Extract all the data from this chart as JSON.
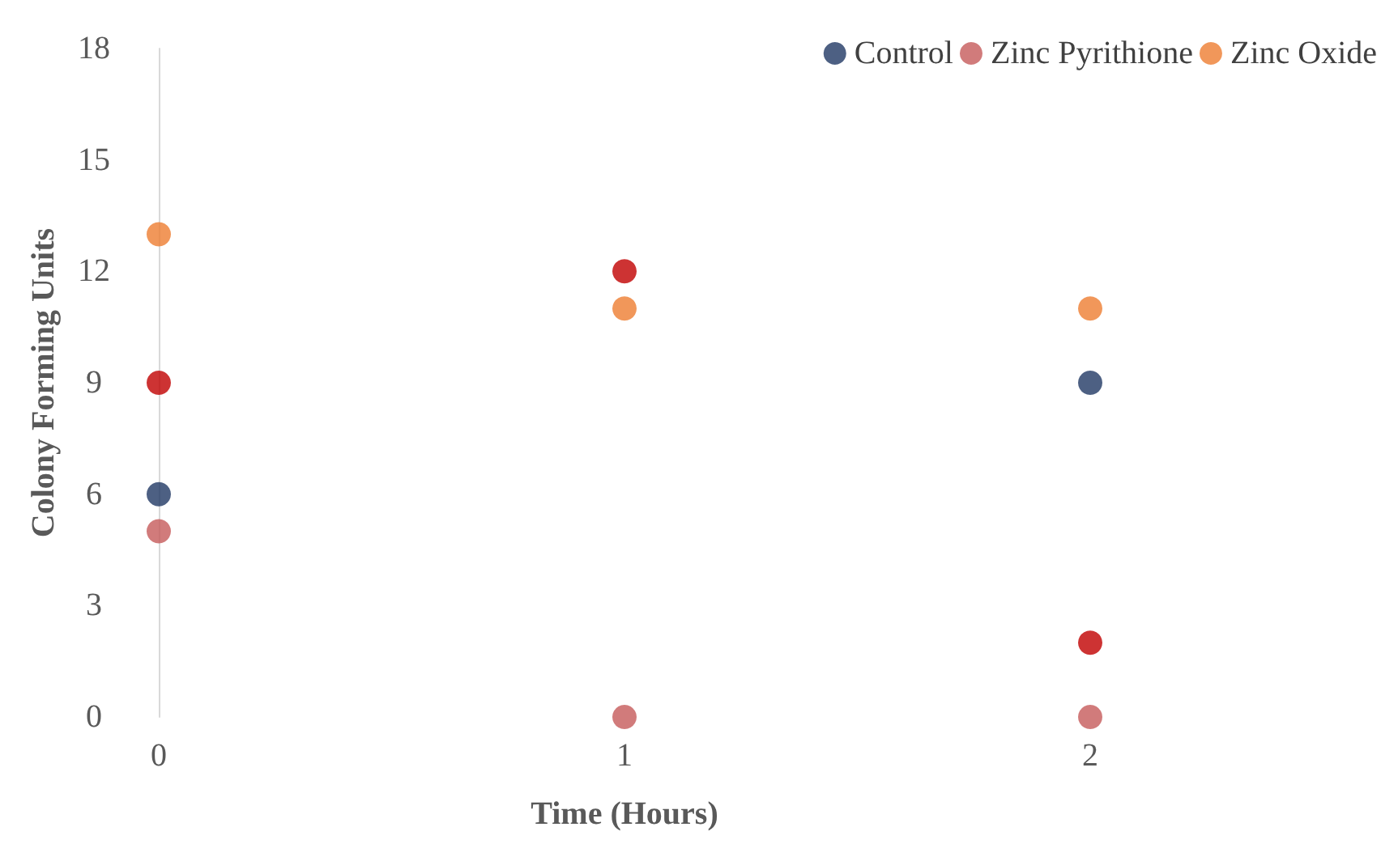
{
  "chart_data": {
    "type": "scatter",
    "xlabel": "Time (Hours)",
    "ylabel": "Colony Forming Units",
    "x": [
      0,
      1,
      2
    ],
    "xlim": [
      0,
      2
    ],
    "xticks": [
      0,
      1,
      2
    ],
    "ylim": [
      0,
      18
    ],
    "yticks": [
      0,
      3,
      6,
      9,
      12,
      15,
      18
    ],
    "grid": false,
    "legend": "top right",
    "marker": "circle",
    "series": [
      {
        "name": "Control",
        "color": "#203864",
        "values": [
          6,
          null,
          9
        ]
      },
      {
        "name": "Zinc Pyrithione",
        "color": "#c55a5a",
        "values": [
          5,
          0,
          0
        ]
      },
      {
        "name": "Zinc Oxide",
        "color": "#ed7d31",
        "values": [
          13,
          11,
          11
        ]
      },
      {
        "color": "#c00000",
        "values": [
          9,
          12,
          2
        ]
      }
    ]
  }
}
